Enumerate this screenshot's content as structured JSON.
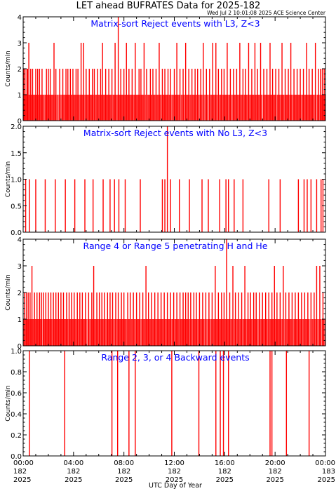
{
  "title": "LET ahead BUFRATES Data for 2025-182",
  "timestamp": "Wed Jul  2 10:01:08 2025 ACE Science Center",
  "xlabel": "UTC Day of Year",
  "colors": {
    "data": "#ff0000",
    "panel_title": "#0000ff",
    "axes": "#000000"
  },
  "chart_data": [
    {
      "type": "bar",
      "title": "Matrix-sort Reject events with L3, Z<3",
      "ylabel": "Counts/min",
      "xlim_hours": [
        0,
        24
      ],
      "ylim": [
        0,
        4
      ],
      "yticks": [
        0,
        1,
        2,
        3,
        4
      ],
      "ytick_labels": [
        "0",
        "1",
        "2",
        "3",
        "4"
      ],
      "baseline": 1,
      "baseline_fill": 0.88,
      "spikes": [
        [
          0.05,
          2
        ],
        [
          0.15,
          2
        ],
        [
          0.3,
          2
        ],
        [
          0.35,
          2
        ],
        [
          0.45,
          3
        ],
        [
          0.6,
          2
        ],
        [
          0.75,
          2
        ],
        [
          1.0,
          2
        ],
        [
          1.15,
          2
        ],
        [
          1.3,
          2
        ],
        [
          1.5,
          2
        ],
        [
          1.85,
          2
        ],
        [
          2.0,
          2
        ],
        [
          2.15,
          2
        ],
        [
          2.45,
          3
        ],
        [
          2.6,
          2
        ],
        [
          2.9,
          2
        ],
        [
          3.15,
          2
        ],
        [
          3.4,
          2
        ],
        [
          3.55,
          2
        ],
        [
          3.75,
          2
        ],
        [
          3.95,
          2
        ],
        [
          4.2,
          2
        ],
        [
          4.35,
          2
        ],
        [
          4.6,
          3
        ],
        [
          4.8,
          3
        ],
        [
          5.0,
          2
        ],
        [
          5.25,
          2
        ],
        [
          5.5,
          2
        ],
        [
          5.65,
          2
        ],
        [
          5.9,
          2
        ],
        [
          6.15,
          2
        ],
        [
          6.3,
          3
        ],
        [
          6.55,
          2
        ],
        [
          6.8,
          2
        ],
        [
          7.05,
          2
        ],
        [
          7.3,
          3
        ],
        [
          7.55,
          4
        ],
        [
          7.75,
          2
        ],
        [
          8.0,
          2
        ],
        [
          8.2,
          3
        ],
        [
          8.4,
          2
        ],
        [
          8.65,
          2
        ],
        [
          8.9,
          3
        ],
        [
          9.2,
          2
        ],
        [
          9.35,
          2
        ],
        [
          9.6,
          3
        ],
        [
          9.8,
          2
        ],
        [
          10.1,
          2
        ],
        [
          10.3,
          2
        ],
        [
          10.55,
          2
        ],
        [
          10.8,
          3
        ],
        [
          11.05,
          2
        ],
        [
          11.25,
          2
        ],
        [
          11.5,
          2
        ],
        [
          11.7,
          2
        ],
        [
          12.0,
          2
        ],
        [
          12.2,
          3
        ],
        [
          12.45,
          2
        ],
        [
          12.7,
          2
        ],
        [
          12.9,
          3
        ],
        [
          13.15,
          2
        ],
        [
          13.4,
          2
        ],
        [
          13.65,
          2
        ],
        [
          13.85,
          2
        ],
        [
          14.1,
          2
        ],
        [
          14.3,
          3
        ],
        [
          14.55,
          2
        ],
        [
          14.8,
          2
        ],
        [
          15.05,
          3
        ],
        [
          15.3,
          3
        ],
        [
          15.5,
          2
        ],
        [
          15.75,
          2
        ],
        [
          15.95,
          2
        ],
        [
          16.2,
          3
        ],
        [
          16.45,
          2
        ],
        [
          16.7,
          2
        ],
        [
          16.95,
          2
        ],
        [
          17.2,
          3
        ],
        [
          17.45,
          2
        ],
        [
          17.65,
          2
        ],
        [
          17.9,
          3
        ],
        [
          18.15,
          2
        ],
        [
          18.4,
          3
        ],
        [
          18.6,
          2
        ],
        [
          18.85,
          3
        ],
        [
          19.1,
          2
        ],
        [
          19.35,
          2
        ],
        [
          19.6,
          3
        ],
        [
          19.8,
          2
        ],
        [
          20.05,
          2
        ],
        [
          20.3,
          2
        ],
        [
          20.55,
          3
        ],
        [
          20.8,
          2
        ],
        [
          21.05,
          2
        ],
        [
          21.25,
          3
        ],
        [
          21.5,
          2
        ],
        [
          21.75,
          2
        ],
        [
          22.0,
          2
        ],
        [
          22.25,
          2
        ],
        [
          22.5,
          3
        ],
        [
          22.7,
          2
        ],
        [
          22.95,
          2
        ],
        [
          23.2,
          3
        ],
        [
          23.45,
          2
        ],
        [
          23.6,
          2
        ],
        [
          23.75,
          2
        ],
        [
          23.9,
          2
        ]
      ]
    },
    {
      "type": "bar",
      "title": "Matrix-sort Reject events with No L3, Z<3",
      "ylabel": "Counts/min",
      "xlim_hours": [
        0,
        24
      ],
      "ylim": [
        0,
        2
      ],
      "yticks": [
        0,
        0.5,
        1,
        1.5,
        2
      ],
      "ytick_labels": [
        "0.0",
        "0.5",
        "1.0",
        "1.5",
        "2.0"
      ],
      "baseline": 0,
      "baseline_fill": 0,
      "spikes": [
        [
          0.2,
          1
        ],
        [
          0.5,
          1
        ],
        [
          1.0,
          1
        ],
        [
          1.75,
          1
        ],
        [
          2.55,
          1
        ],
        [
          3.35,
          1
        ],
        [
          4.1,
          1
        ],
        [
          4.9,
          1
        ],
        [
          5.55,
          1
        ],
        [
          6.35,
          1
        ],
        [
          6.9,
          1
        ],
        [
          7.25,
          1
        ],
        [
          7.6,
          1
        ],
        [
          8.1,
          1
        ],
        [
          9.3,
          1
        ],
        [
          11.05,
          1
        ],
        [
          11.25,
          1
        ],
        [
          11.45,
          2
        ],
        [
          11.7,
          1
        ],
        [
          12.4,
          1
        ],
        [
          13.2,
          1
        ],
        [
          14.2,
          1
        ],
        [
          14.7,
          1
        ],
        [
          15.6,
          1
        ],
        [
          16.1,
          1
        ],
        [
          16.3,
          1
        ],
        [
          16.75,
          1
        ],
        [
          17.45,
          1
        ],
        [
          19.5,
          1
        ],
        [
          20.4,
          1
        ],
        [
          21.85,
          1
        ],
        [
          22.3,
          1
        ],
        [
          22.55,
          1
        ],
        [
          22.85,
          1
        ],
        [
          23.3,
          1
        ],
        [
          23.65,
          1
        ],
        [
          23.8,
          1
        ]
      ]
    },
    {
      "type": "bar",
      "title": "Range 4 or Range 5 penetrating H and He",
      "ylabel": "Counts/min",
      "xlim_hours": [
        0,
        24
      ],
      "ylim": [
        0,
        4
      ],
      "yticks": [
        0,
        1,
        2,
        3,
        4
      ],
      "ytick_labels": [
        "0",
        "1",
        "2",
        "3",
        "4"
      ],
      "baseline": 1,
      "baseline_fill": 0.9,
      "spikes": [
        [
          0.1,
          2
        ],
        [
          0.25,
          2
        ],
        [
          0.4,
          2
        ],
        [
          0.55,
          2
        ],
        [
          0.7,
          3
        ],
        [
          0.9,
          2
        ],
        [
          1.1,
          2
        ],
        [
          1.3,
          2
        ],
        [
          1.45,
          2
        ],
        [
          1.6,
          2
        ],
        [
          1.8,
          2
        ],
        [
          2.0,
          2
        ],
        [
          2.2,
          2
        ],
        [
          2.4,
          2
        ],
        [
          2.6,
          2
        ],
        [
          2.8,
          2
        ],
        [
          3.0,
          2
        ],
        [
          3.2,
          2
        ],
        [
          3.45,
          2
        ],
        [
          3.65,
          2
        ],
        [
          3.85,
          2
        ],
        [
          4.05,
          2
        ],
        [
          4.3,
          2
        ],
        [
          4.5,
          2
        ],
        [
          4.7,
          2
        ],
        [
          4.95,
          2
        ],
        [
          5.2,
          2
        ],
        [
          5.45,
          2
        ],
        [
          5.6,
          3
        ],
        [
          5.85,
          2
        ],
        [
          6.05,
          2
        ],
        [
          6.25,
          2
        ],
        [
          6.45,
          2
        ],
        [
          6.7,
          2
        ],
        [
          6.9,
          2
        ],
        [
          7.1,
          2
        ],
        [
          7.35,
          2
        ],
        [
          7.55,
          2
        ],
        [
          7.8,
          2
        ],
        [
          8.0,
          2
        ],
        [
          8.3,
          2
        ],
        [
          8.5,
          2
        ],
        [
          8.75,
          2
        ],
        [
          9.0,
          2
        ],
        [
          9.25,
          2
        ],
        [
          9.5,
          2
        ],
        [
          9.75,
          3
        ],
        [
          9.95,
          2
        ],
        [
          10.2,
          2
        ],
        [
          10.45,
          2
        ],
        [
          10.7,
          2
        ],
        [
          10.95,
          2
        ],
        [
          11.2,
          2
        ],
        [
          11.45,
          2
        ],
        [
          11.7,
          2
        ],
        [
          11.95,
          2
        ],
        [
          12.2,
          2
        ],
        [
          12.45,
          2
        ],
        [
          12.7,
          2
        ],
        [
          12.9,
          2
        ],
        [
          13.1,
          2
        ],
        [
          13.3,
          2
        ],
        [
          13.55,
          2
        ],
        [
          13.75,
          2
        ],
        [
          14.0,
          2
        ],
        [
          14.25,
          2
        ],
        [
          14.5,
          2
        ],
        [
          14.75,
          2
        ],
        [
          15.0,
          2
        ],
        [
          15.25,
          3
        ],
        [
          15.5,
          2
        ],
        [
          15.75,
          2
        ],
        [
          15.95,
          2
        ],
        [
          16.15,
          4
        ],
        [
          16.4,
          2
        ],
        [
          16.65,
          3
        ],
        [
          16.85,
          2
        ],
        [
          17.1,
          2
        ],
        [
          17.35,
          2
        ],
        [
          17.6,
          3
        ],
        [
          17.85,
          2
        ],
        [
          18.05,
          2
        ],
        [
          18.3,
          2
        ],
        [
          18.5,
          2
        ],
        [
          18.75,
          2
        ],
        [
          19.0,
          2
        ],
        [
          19.25,
          2
        ],
        [
          19.5,
          2
        ],
        [
          19.75,
          2
        ],
        [
          19.95,
          3
        ],
        [
          20.15,
          2
        ],
        [
          20.4,
          2
        ],
        [
          20.65,
          3
        ],
        [
          20.85,
          2
        ],
        [
          21.1,
          2
        ],
        [
          21.35,
          2
        ],
        [
          21.6,
          2
        ],
        [
          21.85,
          2
        ],
        [
          22.1,
          2
        ],
        [
          22.35,
          2
        ],
        [
          22.6,
          2
        ],
        [
          22.85,
          2
        ],
        [
          23.1,
          2
        ],
        [
          23.3,
          3
        ],
        [
          23.55,
          3
        ],
        [
          23.8,
          2
        ]
      ]
    },
    {
      "type": "bar",
      "title": "Range 2, 3, or 4 Backward events",
      "ylabel": "Counts/min",
      "xlim_hours": [
        0,
        24
      ],
      "ylim": [
        0,
        1
      ],
      "yticks": [
        0,
        0.2,
        0.4,
        0.6,
        0.8,
        1.0
      ],
      "ytick_labels": [
        "0.0",
        "0.2",
        "0.4",
        "0.6",
        "0.8",
        "1.0"
      ],
      "baseline": 0,
      "baseline_fill": 0,
      "spikes": [
        [
          0.5,
          1
        ],
        [
          3.3,
          1
        ],
        [
          7.05,
          1
        ],
        [
          7.5,
          1
        ],
        [
          8.4,
          1
        ],
        [
          8.9,
          1
        ],
        [
          11.8,
          1
        ],
        [
          13.95,
          1
        ],
        [
          15.3,
          1
        ],
        [
          15.65,
          1
        ],
        [
          15.9,
          1
        ],
        [
          16.3,
          1
        ],
        [
          19.6,
          1
        ],
        [
          19.75,
          1
        ],
        [
          20.9,
          1
        ],
        [
          22.7,
          1
        ]
      ]
    }
  ],
  "x_ticks": [
    {
      "hour": 0,
      "time": "00:00",
      "doy": "182",
      "year": "2025"
    },
    {
      "hour": 4,
      "time": "04:00",
      "doy": "182",
      "year": "2025"
    },
    {
      "hour": 8,
      "time": "08:00",
      "doy": "182",
      "year": "2025"
    },
    {
      "hour": 12,
      "time": "12:00",
      "doy": "182",
      "year": "2025"
    },
    {
      "hour": 16,
      "time": "16:00",
      "doy": "182",
      "year": "2025"
    },
    {
      "hour": 20,
      "time": "20:00",
      "doy": "182",
      "year": "2025"
    },
    {
      "hour": 24,
      "time": "00:00",
      "doy": "183",
      "year": "2025"
    }
  ]
}
